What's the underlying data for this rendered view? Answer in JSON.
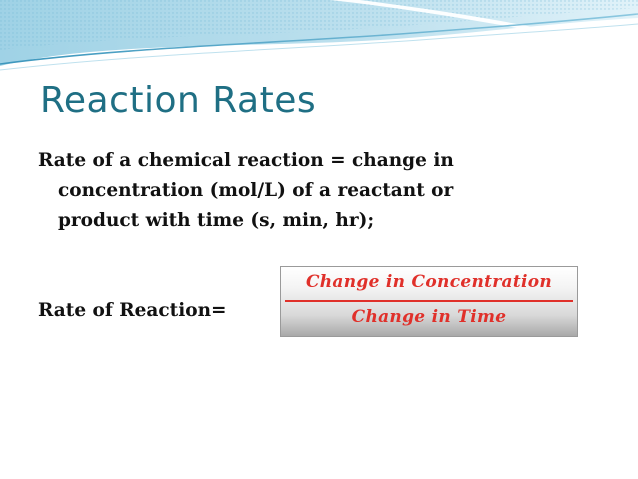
{
  "slide": {
    "title": "Reaction Rates",
    "body_lines": [
      "Rate of a chemical reaction = change in",
      "concentration (mol/L) of a reactant or",
      "product with time (s, min, hr);"
    ],
    "rate_label": "Rate of Reaction=",
    "formula": {
      "numerator": "Change in Concentration",
      "denominator": "Change in Time"
    }
  },
  "colors": {
    "title": "#1f6f84",
    "formula_text": "#e0302a",
    "decor_wave": "#5aa9c9"
  }
}
